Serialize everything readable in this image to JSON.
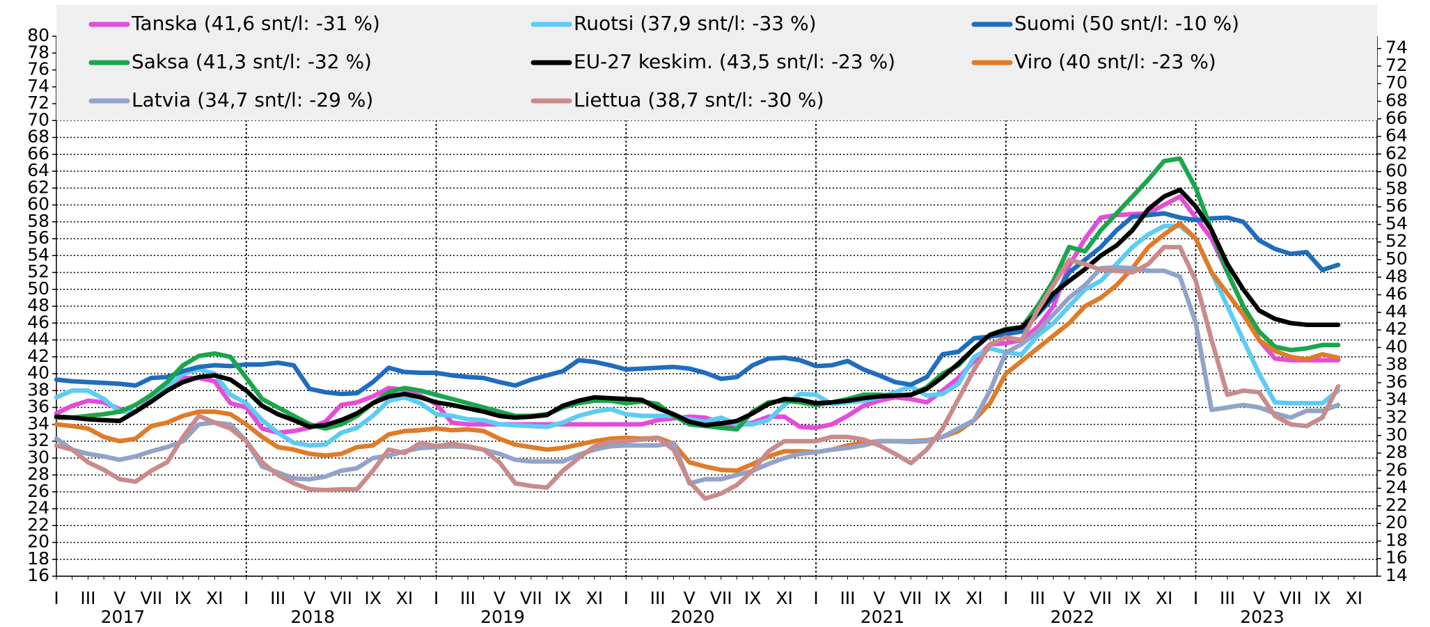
{
  "chart_data": {
    "type": "line",
    "categories": [
      "I",
      null,
      "III",
      null,
      "V",
      null,
      "VII",
      null,
      "IX",
      null,
      "XI",
      null,
      "I",
      null,
      "III",
      null,
      "V",
      null,
      "VII",
      null,
      "IX",
      null,
      "XI",
      null,
      "I",
      null,
      "III",
      null,
      "V",
      null,
      "VII",
      null,
      "IX",
      null,
      "XI",
      null,
      "I",
      null,
      "III",
      null,
      "V",
      null,
      "VII",
      null,
      "IX",
      null,
      "XI",
      null,
      "I",
      null,
      "III",
      null,
      "V",
      null,
      "VII",
      null,
      "IX",
      null,
      "XI",
      null,
      "I",
      null,
      "III",
      null,
      "V",
      null,
      "VII",
      null,
      "IX",
      null,
      "XI",
      null,
      "I",
      null,
      "III",
      null,
      "V",
      null,
      "VII",
      null,
      "IX",
      null,
      "XI"
    ],
    "years": [
      "2017",
      "2018",
      "2019",
      "2020",
      "2021",
      "2022",
      "2023"
    ],
    "ylim": [
      16,
      80
    ],
    "yticks": [
      16,
      18,
      20,
      22,
      24,
      26,
      28,
      30,
      32,
      34,
      36,
      38,
      40,
      42,
      44,
      46,
      48,
      50,
      52,
      54,
      56,
      58,
      60,
      62,
      64,
      66,
      68,
      70,
      72,
      74,
      76,
      78,
      80
    ],
    "y2lim": [
      14,
      75.4
    ],
    "y2ticks": [
      14,
      16,
      18,
      20,
      22,
      24,
      26,
      28,
      30,
      32,
      34,
      36,
      38,
      40,
      42,
      44,
      46,
      48,
      50,
      52,
      54,
      56,
      58,
      60,
      62,
      64,
      66,
      68,
      70,
      72,
      74
    ],
    "grid": true,
    "series": [
      {
        "name": "Tanska (41,6 snt/l: -31 %)",
        "color": "#e64cd8",
        "values": [
          35.3,
          36.2,
          36.8,
          36.6,
          35.8,
          35.5,
          37,
          38.4,
          39.5,
          39.5,
          39.1,
          36.5,
          36,
          33.5,
          33,
          33.2,
          33.6,
          34.3,
          36.3,
          36.6,
          37.3,
          38.3,
          38.1,
          37.4,
          36.4,
          34.2,
          34,
          34,
          34,
          34,
          34,
          34,
          34,
          34,
          34,
          34,
          34,
          34,
          34.5,
          34.7,
          34.9,
          34.8,
          34.1,
          33.8,
          34.2,
          34.9,
          34.9,
          33.7,
          33.6,
          34,
          35,
          36.2,
          36.8,
          37.2,
          37,
          36.6,
          38,
          39.5,
          41.5,
          43.5,
          43.6,
          44,
          45.5,
          48,
          52.8,
          56,
          58.5,
          58.8,
          58.9,
          59,
          60,
          61,
          58.5,
          56,
          52,
          48,
          44,
          41.8,
          41.6,
          41.6,
          41.6,
          41.6,
          null
        ]
      },
      {
        "name": "Ruotsi (37,9 snt/l: -33 %)",
        "color": "#5cccf4",
        "values": [
          37.2,
          38,
          38,
          37,
          35.5,
          35.5,
          36.8,
          38.5,
          40,
          40.5,
          40,
          37.5,
          36.5,
          34.5,
          33,
          31.8,
          31.5,
          31.6,
          33,
          33.6,
          35,
          36.8,
          37.2,
          36.5,
          35.2,
          35,
          34.6,
          34.5,
          34,
          33.9,
          33.8,
          33.7,
          34.2,
          35,
          35.5,
          35.8,
          35.2,
          35,
          35,
          35,
          34.6,
          34.3,
          34.8,
          34,
          34,
          34.5,
          36.3,
          37.6,
          37.5,
          36.4,
          36.6,
          36.8,
          37.2,
          37.8,
          38.5,
          37.4,
          37.6,
          38.8,
          42,
          43,
          42.5,
          42.3,
          44.5,
          46,
          48,
          50,
          51,
          53,
          55,
          56.5,
          57.5,
          57.5,
          56,
          52,
          48,
          44,
          40,
          36.6,
          36.5,
          36.5,
          36.5,
          38,
          null
        ]
      },
      {
        "name": "Suomi (50 snt/l: -10 %)",
        "color": "#1f6dbe",
        "values": [
          39.3,
          39.1,
          39,
          38.9,
          38.8,
          38.6,
          39.5,
          39.6,
          40.3,
          40.8,
          41,
          40.9,
          41.1,
          41.1,
          41.3,
          41,
          38.2,
          37.8,
          37.6,
          37.7,
          39,
          40.7,
          40.2,
          40.1,
          40.1,
          39.8,
          39.6,
          39.5,
          39,
          38.6,
          39.3,
          39.8,
          40.3,
          41.6,
          41.4,
          41,
          40.5,
          40.6,
          40.7,
          40.8,
          40.6,
          40.1,
          39.4,
          39.6,
          41,
          41.8,
          41.9,
          41.6,
          40.9,
          41,
          41.5,
          40.5,
          39.8,
          39,
          38.7,
          39.6,
          42.3,
          42.6,
          44.2,
          44.4,
          44.7,
          45,
          47,
          49,
          52,
          53.5,
          55,
          57,
          58.6,
          58.8,
          59,
          58.5,
          58.2,
          58.4,
          58.5,
          58,
          55.8,
          54.8,
          54.2,
          54.4,
          52.3,
          52.9,
          null
        ]
      },
      {
        "name": "Saksa (41,3 snt/l: -32 %)",
        "color": "#1aa64b",
        "values": [
          34.8,
          34.8,
          35,
          35.2,
          35.5,
          36.3,
          37.5,
          39,
          41,
          42.1,
          42.4,
          42,
          39.5,
          37,
          36,
          35,
          34,
          33.5,
          34,
          35,
          36.5,
          37.8,
          38.3,
          38,
          37.5,
          37,
          36.5,
          36,
          35.5,
          35,
          35,
          35.2,
          36,
          36.5,
          36.8,
          36.8,
          36.5,
          36.7,
          36.4,
          35,
          34,
          33.8,
          33.6,
          33.4,
          35.5,
          36.6,
          36.8,
          36.6,
          36.3,
          36.6,
          37,
          37.5,
          37.5,
          37.4,
          37.5,
          38.4,
          40,
          41,
          43,
          44.6,
          45.3,
          45.5,
          48,
          51,
          55,
          54.5,
          57,
          59,
          61,
          63,
          65.2,
          65.5,
          62,
          57,
          52,
          48,
          45,
          43.2,
          42.8,
          43,
          43.4,
          43.4,
          null
        ]
      },
      {
        "name": "EU-27 keskim. (43,5 snt/l: -23 %)",
        "color": "#000000",
        "values": [
          34.9,
          34.8,
          34.6,
          34.5,
          34.4,
          35.5,
          36.7,
          38,
          39,
          39.6,
          39.8,
          39.3,
          38,
          36.2,
          35.2,
          34.5,
          33.7,
          33.9,
          34.5,
          35.3,
          36.5,
          37.3,
          37.6,
          37.2,
          36.6,
          36.3,
          35.9,
          35.5,
          35,
          34.8,
          34.9,
          35.1,
          36.2,
          36.8,
          37.2,
          37.1,
          37,
          36.9,
          35.9,
          35.2,
          34.3,
          33.9,
          34.1,
          34.4,
          35.3,
          36.4,
          37,
          36.9,
          36.5,
          36.6,
          36.8,
          37.1,
          37.3,
          37.4,
          37.5,
          38.2,
          39.6,
          41.2,
          43,
          44.6,
          45.2,
          45.5,
          47.2,
          49.5,
          51,
          52.4,
          54,
          55.2,
          57,
          59.5,
          61,
          61.8,
          59.8,
          57,
          53,
          50,
          47.5,
          46.5,
          46,
          45.8,
          45.8,
          45.8,
          null
        ]
      },
      {
        "name": "Viro (40 snt/l: -23 %)",
        "color": "#e07b28",
        "values": [
          34,
          33.8,
          33.5,
          32.5,
          32,
          32.3,
          33.8,
          34.2,
          35,
          35.5,
          35.5,
          35.2,
          34,
          32.5,
          31.3,
          31,
          30.5,
          30.3,
          30.5,
          31.3,
          31.5,
          32.8,
          33.2,
          33.3,
          33.5,
          33.3,
          33.4,
          33.2,
          32.3,
          31.6,
          31.3,
          31,
          31.2,
          31.6,
          32,
          32.3,
          32.4,
          32.3,
          32.4,
          31.7,
          29.5,
          29,
          28.6,
          28.5,
          29.3,
          30.2,
          30.8,
          30.8,
          30.7,
          31,
          31.5,
          31.8,
          32,
          32,
          32,
          32.1,
          32.5,
          33.2,
          34.5,
          36.5,
          40,
          41.5,
          43,
          44.5,
          46,
          48,
          49,
          50.5,
          52.5,
          55,
          56.5,
          57.8,
          56,
          52,
          49.5,
          47,
          44,
          42.7,
          42,
          41.7,
          42.3,
          41.9,
          null
        ]
      },
      {
        "name": "Latvia (34,7 snt/l: -29 %)",
        "color": "#91a3c8",
        "values": [
          32.3,
          31,
          30.5,
          30.2,
          29.8,
          30.2,
          30.8,
          31.3,
          32,
          34,
          34.2,
          34,
          32,
          29,
          28.3,
          27.6,
          27.5,
          27.8,
          28.5,
          28.8,
          30,
          30.3,
          30.8,
          31.2,
          31.3,
          31.4,
          31.3,
          31,
          30.5,
          29.8,
          29.6,
          29.6,
          29.6,
          30.4,
          31,
          31.4,
          31.5,
          31.5,
          31.5,
          31.8,
          27,
          27.5,
          27.5,
          28,
          28.5,
          29.3,
          30,
          30.5,
          30.7,
          31,
          31.2,
          31.5,
          32,
          32,
          31.9,
          32,
          32.5,
          33.5,
          34.5,
          38,
          42.5,
          43.5,
          45,
          47,
          49,
          50.5,
          52.5,
          52.6,
          52.5,
          52.2,
          52.2,
          51.5,
          46,
          35.7,
          36,
          36.3,
          36,
          35.3,
          34.8,
          35.6,
          35.6,
          36.3,
          null
        ]
      },
      {
        "name": "Liettua (38,7 snt/l: -30 %)",
        "color": "#c98b8b",
        "values": [
          31.5,
          31,
          29.5,
          28.6,
          27.5,
          27.2,
          28.5,
          29.5,
          32.5,
          35,
          34.2,
          33.5,
          32,
          29.5,
          28,
          27,
          26.3,
          26.2,
          26.3,
          26.3,
          28.5,
          31,
          30.6,
          31.8,
          31.4,
          31.7,
          31.4,
          31,
          29.5,
          27,
          26.7,
          26.5,
          28.5,
          30,
          31.4,
          31.9,
          32,
          32.2,
          32.4,
          31,
          27.2,
          25.2,
          25.8,
          26.8,
          28.5,
          30.8,
          32,
          32,
          32,
          32.5,
          32.5,
          32.2,
          31.5,
          30.5,
          29.4,
          31,
          33.5,
          37,
          40.5,
          43.5,
          44.3,
          44,
          47.5,
          50.5,
          53.5,
          53,
          52.3,
          52.2,
          52,
          53,
          55,
          55,
          51,
          44,
          37.5,
          38,
          37.8,
          35,
          34,
          33.8,
          34.8,
          38.5,
          null
        ]
      }
    ]
  }
}
